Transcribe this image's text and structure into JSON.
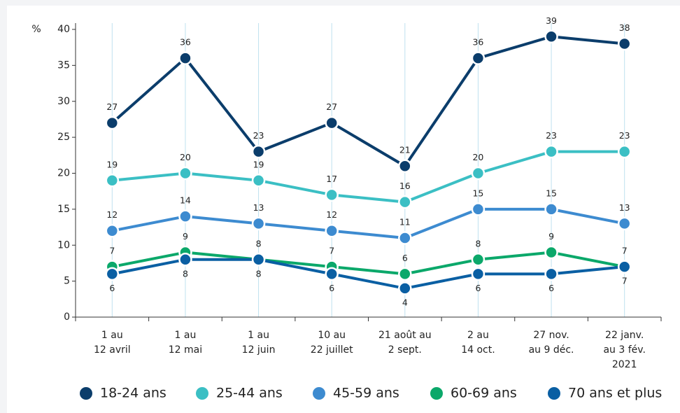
{
  "chart_data": {
    "type": "line",
    "y_label": "%",
    "categories": [
      "1 au\n12 avril",
      "1 au\n12 mai",
      "1 au\n12 juin",
      "10 au\n22 juillet",
      "21 août au\n2 sept.",
      "2 au\n14 oct.",
      "27 nov.\nau 9 déc.",
      "22 janv.\nau 3 fév.\n2021"
    ],
    "series": [
      {
        "name": "18-24 ans",
        "color": "#0b3d6b",
        "values": [
          27,
          36,
          23,
          27,
          21,
          36,
          39,
          38
        ]
      },
      {
        "name": "25-44 ans",
        "color": "#3bbfc4",
        "values": [
          19,
          20,
          19,
          17,
          16,
          20,
          23,
          23
        ]
      },
      {
        "name": "45-59 ans",
        "color": "#3d8bd0",
        "values": [
          12,
          14,
          13,
          12,
          11,
          15,
          15,
          13
        ]
      },
      {
        "name": "60-69 ans",
        "color": "#0ba86a",
        "values": [
          7,
          9,
          8,
          7,
          6,
          8,
          9,
          7
        ]
      },
      {
        "name": "70 ans et plus",
        "color": "#0a5fa3",
        "values": [
          6,
          8,
          8,
          6,
          4,
          6,
          6,
          7
        ]
      }
    ],
    "ylim": [
      0,
      40
    ],
    "yticks": [
      0,
      5,
      10,
      15,
      20,
      25,
      30,
      35,
      40
    ],
    "grid": true,
    "legend": "bottom"
  }
}
